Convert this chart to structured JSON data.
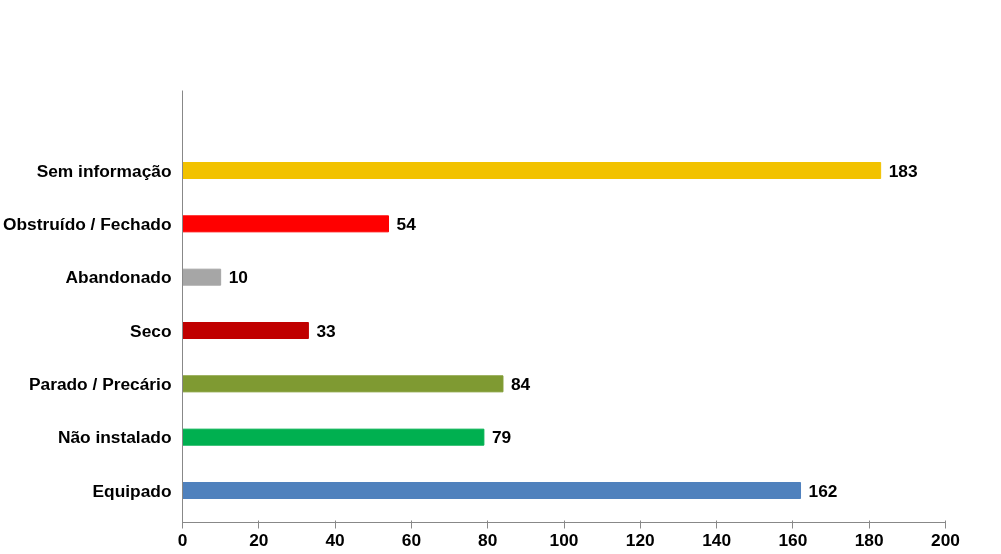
{
  "chart_data": {
    "type": "bar",
    "orientation": "horizontal",
    "categories": [
      "Sem informação",
      "Obstruído / Fechado",
      "Abandonado",
      "Seco",
      "Parado / Precário",
      "Não instalado",
      "Equipado"
    ],
    "values": [
      183,
      54,
      10,
      33,
      84,
      79,
      162
    ],
    "colors": [
      "#f2c200",
      "#ff0000",
      "#a6a6a6",
      "#c00000",
      "#7f9a32",
      "#00b050",
      "#4f81bd"
    ],
    "xlim": [
      0,
      200
    ],
    "xticks": [
      0,
      20,
      40,
      60,
      80,
      100,
      120,
      140,
      160,
      180,
      200
    ],
    "data_labels": true,
    "grid": false
  }
}
